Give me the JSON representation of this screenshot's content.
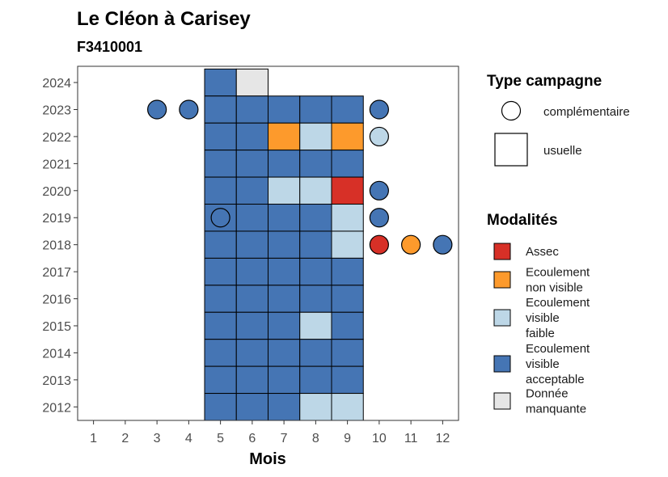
{
  "chart_data": {
    "type": "heatmap",
    "title": "Le Cléon à Carisey",
    "subtitle": "F3410001",
    "xlabel": "Mois",
    "ylabel": "",
    "x_ticks": [
      1,
      2,
      3,
      4,
      5,
      6,
      7,
      8,
      9,
      10,
      11,
      12
    ],
    "y_ticks": [
      2012,
      2013,
      2014,
      2015,
      2016,
      2017,
      2018,
      2019,
      2020,
      2021,
      2022,
      2023,
      2024
    ],
    "xlim": [
      0.5,
      12.5
    ],
    "ylim": [
      2011.5,
      2024.6
    ],
    "grid": false,
    "legend_campagne": {
      "title": "Type campagne",
      "entries": [
        {
          "key": "complementaire",
          "label": "complémentaire",
          "shape": "circle"
        },
        {
          "key": "usuelle",
          "label": "usuelle",
          "shape": "square"
        }
      ]
    },
    "legend_modalites": {
      "title": "Modalités",
      "entries": [
        {
          "key": "assec",
          "lines": [
            "Assec"
          ],
          "color": "#d73027"
        },
        {
          "key": "nonvisible",
          "lines": [
            "Ecoulement",
            "non visible"
          ],
          "color": "#fd9a2c"
        },
        {
          "key": "faible",
          "lines": [
            "Ecoulement",
            "visible",
            "faible"
          ],
          "color": "#bdd7e7"
        },
        {
          "key": "acceptable",
          "lines": [
            "Ecoulement",
            "visible",
            "acceptable"
          ],
          "color": "#4575b4"
        },
        {
          "key": "manquante",
          "lines": [
            "Donnée",
            "manquante"
          ],
          "color": "#e6e6e6"
        }
      ]
    },
    "observations": [
      {
        "year": 2024,
        "month": 5,
        "campagne": "usuelle",
        "modalite": "acceptable"
      },
      {
        "year": 2024,
        "month": 6,
        "campagne": "usuelle",
        "modalite": "manquante"
      },
      {
        "year": 2023,
        "month": 3,
        "campagne": "complementaire",
        "modalite": "acceptable"
      },
      {
        "year": 2023,
        "month": 4,
        "campagne": "complementaire",
        "modalite": "acceptable"
      },
      {
        "year": 2023,
        "month": 5,
        "campagne": "usuelle",
        "modalite": "acceptable"
      },
      {
        "year": 2023,
        "month": 6,
        "campagne": "usuelle",
        "modalite": "acceptable"
      },
      {
        "year": 2023,
        "month": 7,
        "campagne": "usuelle",
        "modalite": "acceptable"
      },
      {
        "year": 2023,
        "month": 8,
        "campagne": "usuelle",
        "modalite": "acceptable"
      },
      {
        "year": 2023,
        "month": 9,
        "campagne": "usuelle",
        "modalite": "acceptable"
      },
      {
        "year": 2023,
        "month": 10,
        "campagne": "complementaire",
        "modalite": "acceptable"
      },
      {
        "year": 2022,
        "month": 5,
        "campagne": "usuelle",
        "modalite": "acceptable"
      },
      {
        "year": 2022,
        "month": 6,
        "campagne": "usuelle",
        "modalite": "acceptable"
      },
      {
        "year": 2022,
        "month": 7,
        "campagne": "usuelle",
        "modalite": "nonvisible"
      },
      {
        "year": 2022,
        "month": 8,
        "campagne": "usuelle",
        "modalite": "faible"
      },
      {
        "year": 2022,
        "month": 9,
        "campagne": "usuelle",
        "modalite": "nonvisible"
      },
      {
        "year": 2022,
        "month": 10,
        "campagne": "complementaire",
        "modalite": "faible"
      },
      {
        "year": 2021,
        "month": 5,
        "campagne": "usuelle",
        "modalite": "acceptable"
      },
      {
        "year": 2021,
        "month": 6,
        "campagne": "usuelle",
        "modalite": "acceptable"
      },
      {
        "year": 2021,
        "month": 7,
        "campagne": "usuelle",
        "modalite": "acceptable"
      },
      {
        "year": 2021,
        "month": 8,
        "campagne": "usuelle",
        "modalite": "acceptable"
      },
      {
        "year": 2021,
        "month": 9,
        "campagne": "usuelle",
        "modalite": "acceptable"
      },
      {
        "year": 2020,
        "month": 5,
        "campagne": "usuelle",
        "modalite": "acceptable"
      },
      {
        "year": 2020,
        "month": 6,
        "campagne": "usuelle",
        "modalite": "acceptable"
      },
      {
        "year": 2020,
        "month": 7,
        "campagne": "usuelle",
        "modalite": "faible"
      },
      {
        "year": 2020,
        "month": 8,
        "campagne": "usuelle",
        "modalite": "faible"
      },
      {
        "year": 2020,
        "month": 9,
        "campagne": "usuelle",
        "modalite": "assec"
      },
      {
        "year": 2020,
        "month": 10,
        "campagne": "complementaire",
        "modalite": "acceptable"
      },
      {
        "year": 2019,
        "month": 5,
        "campagne": "usuelle",
        "modalite": "acceptable"
      },
      {
        "year": 2019,
        "month": 5,
        "campagne": "complementaire",
        "modalite": "acceptable"
      },
      {
        "year": 2019,
        "month": 6,
        "campagne": "usuelle",
        "modalite": "acceptable"
      },
      {
        "year": 2019,
        "month": 7,
        "campagne": "usuelle",
        "modalite": "acceptable"
      },
      {
        "year": 2019,
        "month": 8,
        "campagne": "usuelle",
        "modalite": "acceptable"
      },
      {
        "year": 2019,
        "month": 9,
        "campagne": "usuelle",
        "modalite": "faible"
      },
      {
        "year": 2019,
        "month": 10,
        "campagne": "complementaire",
        "modalite": "acceptable"
      },
      {
        "year": 2018,
        "month": 5,
        "campagne": "usuelle",
        "modalite": "acceptable"
      },
      {
        "year": 2018,
        "month": 6,
        "campagne": "usuelle",
        "modalite": "acceptable"
      },
      {
        "year": 2018,
        "month": 7,
        "campagne": "usuelle",
        "modalite": "acceptable"
      },
      {
        "year": 2018,
        "month": 8,
        "campagne": "usuelle",
        "modalite": "acceptable"
      },
      {
        "year": 2018,
        "month": 9,
        "campagne": "usuelle",
        "modalite": "faible"
      },
      {
        "year": 2018,
        "month": 10,
        "campagne": "complementaire",
        "modalite": "assec"
      },
      {
        "year": 2018,
        "month": 11,
        "campagne": "complementaire",
        "modalite": "nonvisible"
      },
      {
        "year": 2018,
        "month": 12,
        "campagne": "complementaire",
        "modalite": "acceptable"
      },
      {
        "year": 2017,
        "month": 5,
        "campagne": "usuelle",
        "modalite": "acceptable"
      },
      {
        "year": 2017,
        "month": 6,
        "campagne": "usuelle",
        "modalite": "acceptable"
      },
      {
        "year": 2017,
        "month": 7,
        "campagne": "usuelle",
        "modalite": "acceptable"
      },
      {
        "year": 2017,
        "month": 8,
        "campagne": "usuelle",
        "modalite": "acceptable"
      },
      {
        "year": 2017,
        "month": 9,
        "campagne": "usuelle",
        "modalite": "acceptable"
      },
      {
        "year": 2016,
        "month": 5,
        "campagne": "usuelle",
        "modalite": "acceptable"
      },
      {
        "year": 2016,
        "month": 6,
        "campagne": "usuelle",
        "modalite": "acceptable"
      },
      {
        "year": 2016,
        "month": 7,
        "campagne": "usuelle",
        "modalite": "acceptable"
      },
      {
        "year": 2016,
        "month": 8,
        "campagne": "usuelle",
        "modalite": "acceptable"
      },
      {
        "year": 2016,
        "month": 9,
        "campagne": "usuelle",
        "modalite": "acceptable"
      },
      {
        "year": 2015,
        "month": 5,
        "campagne": "usuelle",
        "modalite": "acceptable"
      },
      {
        "year": 2015,
        "month": 6,
        "campagne": "usuelle",
        "modalite": "acceptable"
      },
      {
        "year": 2015,
        "month": 7,
        "campagne": "usuelle",
        "modalite": "acceptable"
      },
      {
        "year": 2015,
        "month": 8,
        "campagne": "usuelle",
        "modalite": "faible"
      },
      {
        "year": 2015,
        "month": 9,
        "campagne": "usuelle",
        "modalite": "acceptable"
      },
      {
        "year": 2014,
        "month": 5,
        "campagne": "usuelle",
        "modalite": "acceptable"
      },
      {
        "year": 2014,
        "month": 6,
        "campagne": "usuelle",
        "modalite": "acceptable"
      },
      {
        "year": 2014,
        "month": 7,
        "campagne": "usuelle",
        "modalite": "acceptable"
      },
      {
        "year": 2014,
        "month": 8,
        "campagne": "usuelle",
        "modalite": "acceptable"
      },
      {
        "year": 2014,
        "month": 9,
        "campagne": "usuelle",
        "modalite": "acceptable"
      },
      {
        "year": 2013,
        "month": 5,
        "campagne": "usuelle",
        "modalite": "acceptable"
      },
      {
        "year": 2013,
        "month": 6,
        "campagne": "usuelle",
        "modalite": "acceptable"
      },
      {
        "year": 2013,
        "month": 7,
        "campagne": "usuelle",
        "modalite": "acceptable"
      },
      {
        "year": 2013,
        "month": 8,
        "campagne": "usuelle",
        "modalite": "acceptable"
      },
      {
        "year": 2013,
        "month": 9,
        "campagne": "usuelle",
        "modalite": "acceptable"
      },
      {
        "year": 2012,
        "month": 5,
        "campagne": "usuelle",
        "modalite": "acceptable"
      },
      {
        "year": 2012,
        "month": 6,
        "campagne": "usuelle",
        "modalite": "acceptable"
      },
      {
        "year": 2012,
        "month": 7,
        "campagne": "usuelle",
        "modalite": "acceptable"
      },
      {
        "year": 2012,
        "month": 8,
        "campagne": "usuelle",
        "modalite": "faible"
      },
      {
        "year": 2012,
        "month": 9,
        "campagne": "usuelle",
        "modalite": "faible"
      }
    ]
  }
}
